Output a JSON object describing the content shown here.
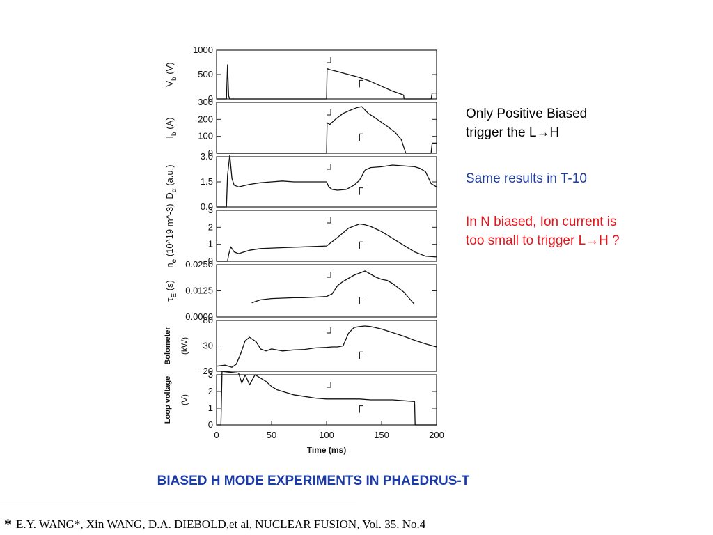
{
  "notes": {
    "line1": "Only Positive Biased",
    "line2a": "trigger the L",
    "line2b": "H",
    "same": "Same results in T-10",
    "nb1": "In N biased, Ion current is",
    "nb2a": "too small to trigger L",
    "nb2b": "H ?",
    "arrow": "→"
  },
  "title": "BIASED H MODE EXPERIMENTS IN PHAEDRUS-T",
  "citation": {
    "star": "*",
    "text": "E.Y. WANG*, Xin WANG, D.A. DIEBOLD,et al, NUCLEAR FUSION, Vol. 35. No.4"
  },
  "chart_data": {
    "type": "line",
    "xlabel": "Time (ms)",
    "xlim": [
      0,
      200
    ],
    "xticks": [
      0,
      50,
      100,
      150,
      200
    ],
    "markers": [
      100,
      130
    ],
    "colors": {
      "line": "#111111",
      "frame": "#222222"
    },
    "panels": [
      {
        "id": "vb",
        "ylabel_main": "V",
        "ylabel_sub": "b",
        "ylabel_rest": " (V)",
        "ylim": [
          0,
          1000
        ],
        "yticks": [
          0,
          500,
          1000
        ],
        "ytick_labels": [
          "0",
          "500",
          "1000"
        ],
        "x": [
          0,
          9,
          10,
          11,
          12,
          100,
          100.5,
          103,
          110,
          120,
          130,
          140,
          150,
          160,
          170,
          170.5,
          195,
          196,
          200
        ],
        "y": [
          0,
          0,
          700,
          60,
          0,
          0,
          620,
          600,
          560,
          500,
          440,
          360,
          260,
          160,
          80,
          0,
          0,
          120,
          120
        ]
      },
      {
        "id": "ib",
        "ylabel_main": "I",
        "ylabel_sub": "b",
        "ylabel_rest": " (A)",
        "ylim": [
          0,
          300
        ],
        "yticks": [
          0,
          100,
          200,
          300
        ],
        "ytick_labels": [
          "0",
          "100",
          "200",
          "300"
        ],
        "x": [
          0,
          100,
          100.5,
          103,
          108,
          115,
          122,
          128,
          132,
          138,
          145,
          155,
          162,
          168,
          170,
          172,
          195,
          196,
          200
        ],
        "y": [
          0,
          0,
          180,
          170,
          200,
          235,
          255,
          270,
          275,
          235,
          205,
          160,
          125,
          80,
          40,
          0,
          0,
          60,
          60
        ]
      },
      {
        "id": "da",
        "ylabel_main": "D",
        "ylabel_sub": "α",
        "ylabel_rest": " (a.u.)",
        "ylim": [
          0,
          3
        ],
        "yticks": [
          0,
          1.5,
          3
        ],
        "ytick_labels": [
          "0.0",
          "1.5",
          "3.0"
        ],
        "x": [
          0,
          9,
          10,
          12,
          14,
          16,
          20,
          30,
          40,
          50,
          60,
          70,
          80,
          90,
          100,
          102,
          105,
          110,
          118,
          125,
          130,
          135,
          140,
          150,
          160,
          170,
          180,
          185,
          190,
          195,
          200
        ],
        "y": [
          0,
          0,
          1.9,
          3.1,
          1.7,
          1.3,
          1.2,
          1.35,
          1.45,
          1.5,
          1.55,
          1.5,
          1.5,
          1.5,
          1.5,
          1.2,
          1.05,
          1.0,
          1.05,
          1.3,
          1.6,
          2.2,
          2.35,
          2.4,
          2.5,
          2.45,
          2.4,
          2.3,
          2.1,
          1.4,
          1.2
        ]
      },
      {
        "id": "ne",
        "ylabel_main": "n",
        "ylabel_sub": "e",
        "ylabel_rest": " (10^19 m^-3)",
        "ylim": [
          0,
          3
        ],
        "yticks": [
          0,
          1,
          2,
          3
        ],
        "ytick_labels": [
          "0",
          "1",
          "2",
          "3"
        ],
        "x": [
          0,
          10,
          11,
          13,
          16,
          20,
          30,
          40,
          60,
          80,
          100,
          110,
          120,
          130,
          135,
          140,
          150,
          160,
          170,
          180,
          190,
          200
        ],
        "y": [
          0,
          0,
          0.4,
          0.85,
          0.55,
          0.45,
          0.65,
          0.75,
          0.8,
          0.85,
          0.9,
          1.4,
          1.95,
          2.2,
          2.15,
          2.05,
          1.75,
          1.35,
          0.95,
          0.55,
          0.3,
          0.25
        ]
      },
      {
        "id": "te",
        "ylabel_main": "τ",
        "ylabel_sub": "E",
        "ylabel_rest": " (s)",
        "ylim": [
          0,
          0.025
        ],
        "yticks": [
          0,
          0.0125,
          0.025
        ],
        "ytick_labels": [
          "0.0000",
          "0.0125",
          "0.0250"
        ],
        "x": [
          32,
          40,
          50,
          60,
          70,
          80,
          90,
          100,
          105,
          110,
          115,
          120,
          125,
          130,
          135,
          140,
          145,
          150,
          155,
          160,
          165,
          170,
          175,
          180
        ],
        "y": [
          0.0068,
          0.0082,
          0.0088,
          0.009,
          0.0092,
          0.0092,
          0.0095,
          0.0098,
          0.011,
          0.015,
          0.017,
          0.0185,
          0.02,
          0.021,
          0.022,
          0.0205,
          0.019,
          0.018,
          0.0175,
          0.016,
          0.014,
          0.012,
          0.009,
          0.006
        ]
      },
      {
        "id": "bolo",
        "ylabel_main": "Bolometer",
        "ylabel_sub": "",
        "ylabel_rest": "(kW)",
        "ylim": [
          -20,
          80
        ],
        "yticks": [
          -20,
          30,
          80
        ],
        "ytick_labels": [
          "−20",
          "30",
          "80"
        ],
        "x": [
          0,
          8,
          14,
          18,
          22,
          26,
          30,
          36,
          40,
          45,
          50,
          60,
          70,
          80,
          90,
          100,
          105,
          110,
          115,
          120,
          125,
          130,
          135,
          140,
          150,
          160,
          170,
          180,
          190,
          200
        ],
        "y": [
          -10,
          -8,
          -12,
          -6,
          15,
          40,
          47,
          38,
          24,
          20,
          24,
          20,
          22,
          23,
          26,
          27,
          28,
          28,
          30,
          55,
          66,
          68,
          69,
          68,
          63,
          56,
          49,
          41,
          34,
          28
        ]
      },
      {
        "id": "loop",
        "ylabel_main": "Loop voltage",
        "ylabel_sub": "",
        "ylabel_rest": "(V)",
        "ylim": [
          0,
          3
        ],
        "yticks": [
          0,
          1,
          2,
          3
        ],
        "ytick_labels": [
          "0",
          "1",
          "2",
          "3"
        ],
        "x": [
          0,
          4,
          5,
          20,
          23,
          26,
          30,
          35,
          40,
          45,
          50,
          55,
          60,
          70,
          80,
          90,
          100,
          110,
          120,
          130,
          140,
          150,
          160,
          170,
          180,
          180.5,
          200
        ],
        "y": [
          0,
          0,
          3.2,
          3.1,
          2.5,
          3.0,
          2.4,
          3.0,
          2.8,
          2.6,
          2.3,
          2.1,
          2.0,
          1.8,
          1.7,
          1.6,
          1.55,
          1.55,
          1.55,
          1.55,
          1.5,
          1.5,
          1.5,
          1.45,
          1.4,
          0,
          0
        ]
      }
    ]
  }
}
